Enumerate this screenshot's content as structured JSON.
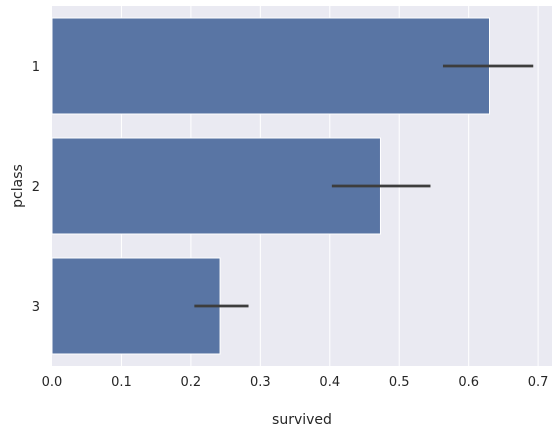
{
  "chart_data": {
    "type": "bar",
    "orientation": "horizontal",
    "categories": [
      "1",
      "2",
      "3"
    ],
    "values": [
      0.63,
      0.473,
      0.242
    ],
    "error_low": [
      0.563,
      0.403,
      0.205
    ],
    "error_high": [
      0.693,
      0.545,
      0.283
    ],
    "xlabel": "survived",
    "ylabel": "pclass",
    "xlim": [
      0,
      0.72
    ],
    "xticks": [
      "0.0",
      "0.1",
      "0.2",
      "0.3",
      "0.4",
      "0.5",
      "0.6",
      "0.7"
    ],
    "grid": true,
    "colors": {
      "bar": "#5975a4",
      "error": "#3d3d3d",
      "background": "#eaeaf2",
      "grid": "#ffffff"
    }
  }
}
